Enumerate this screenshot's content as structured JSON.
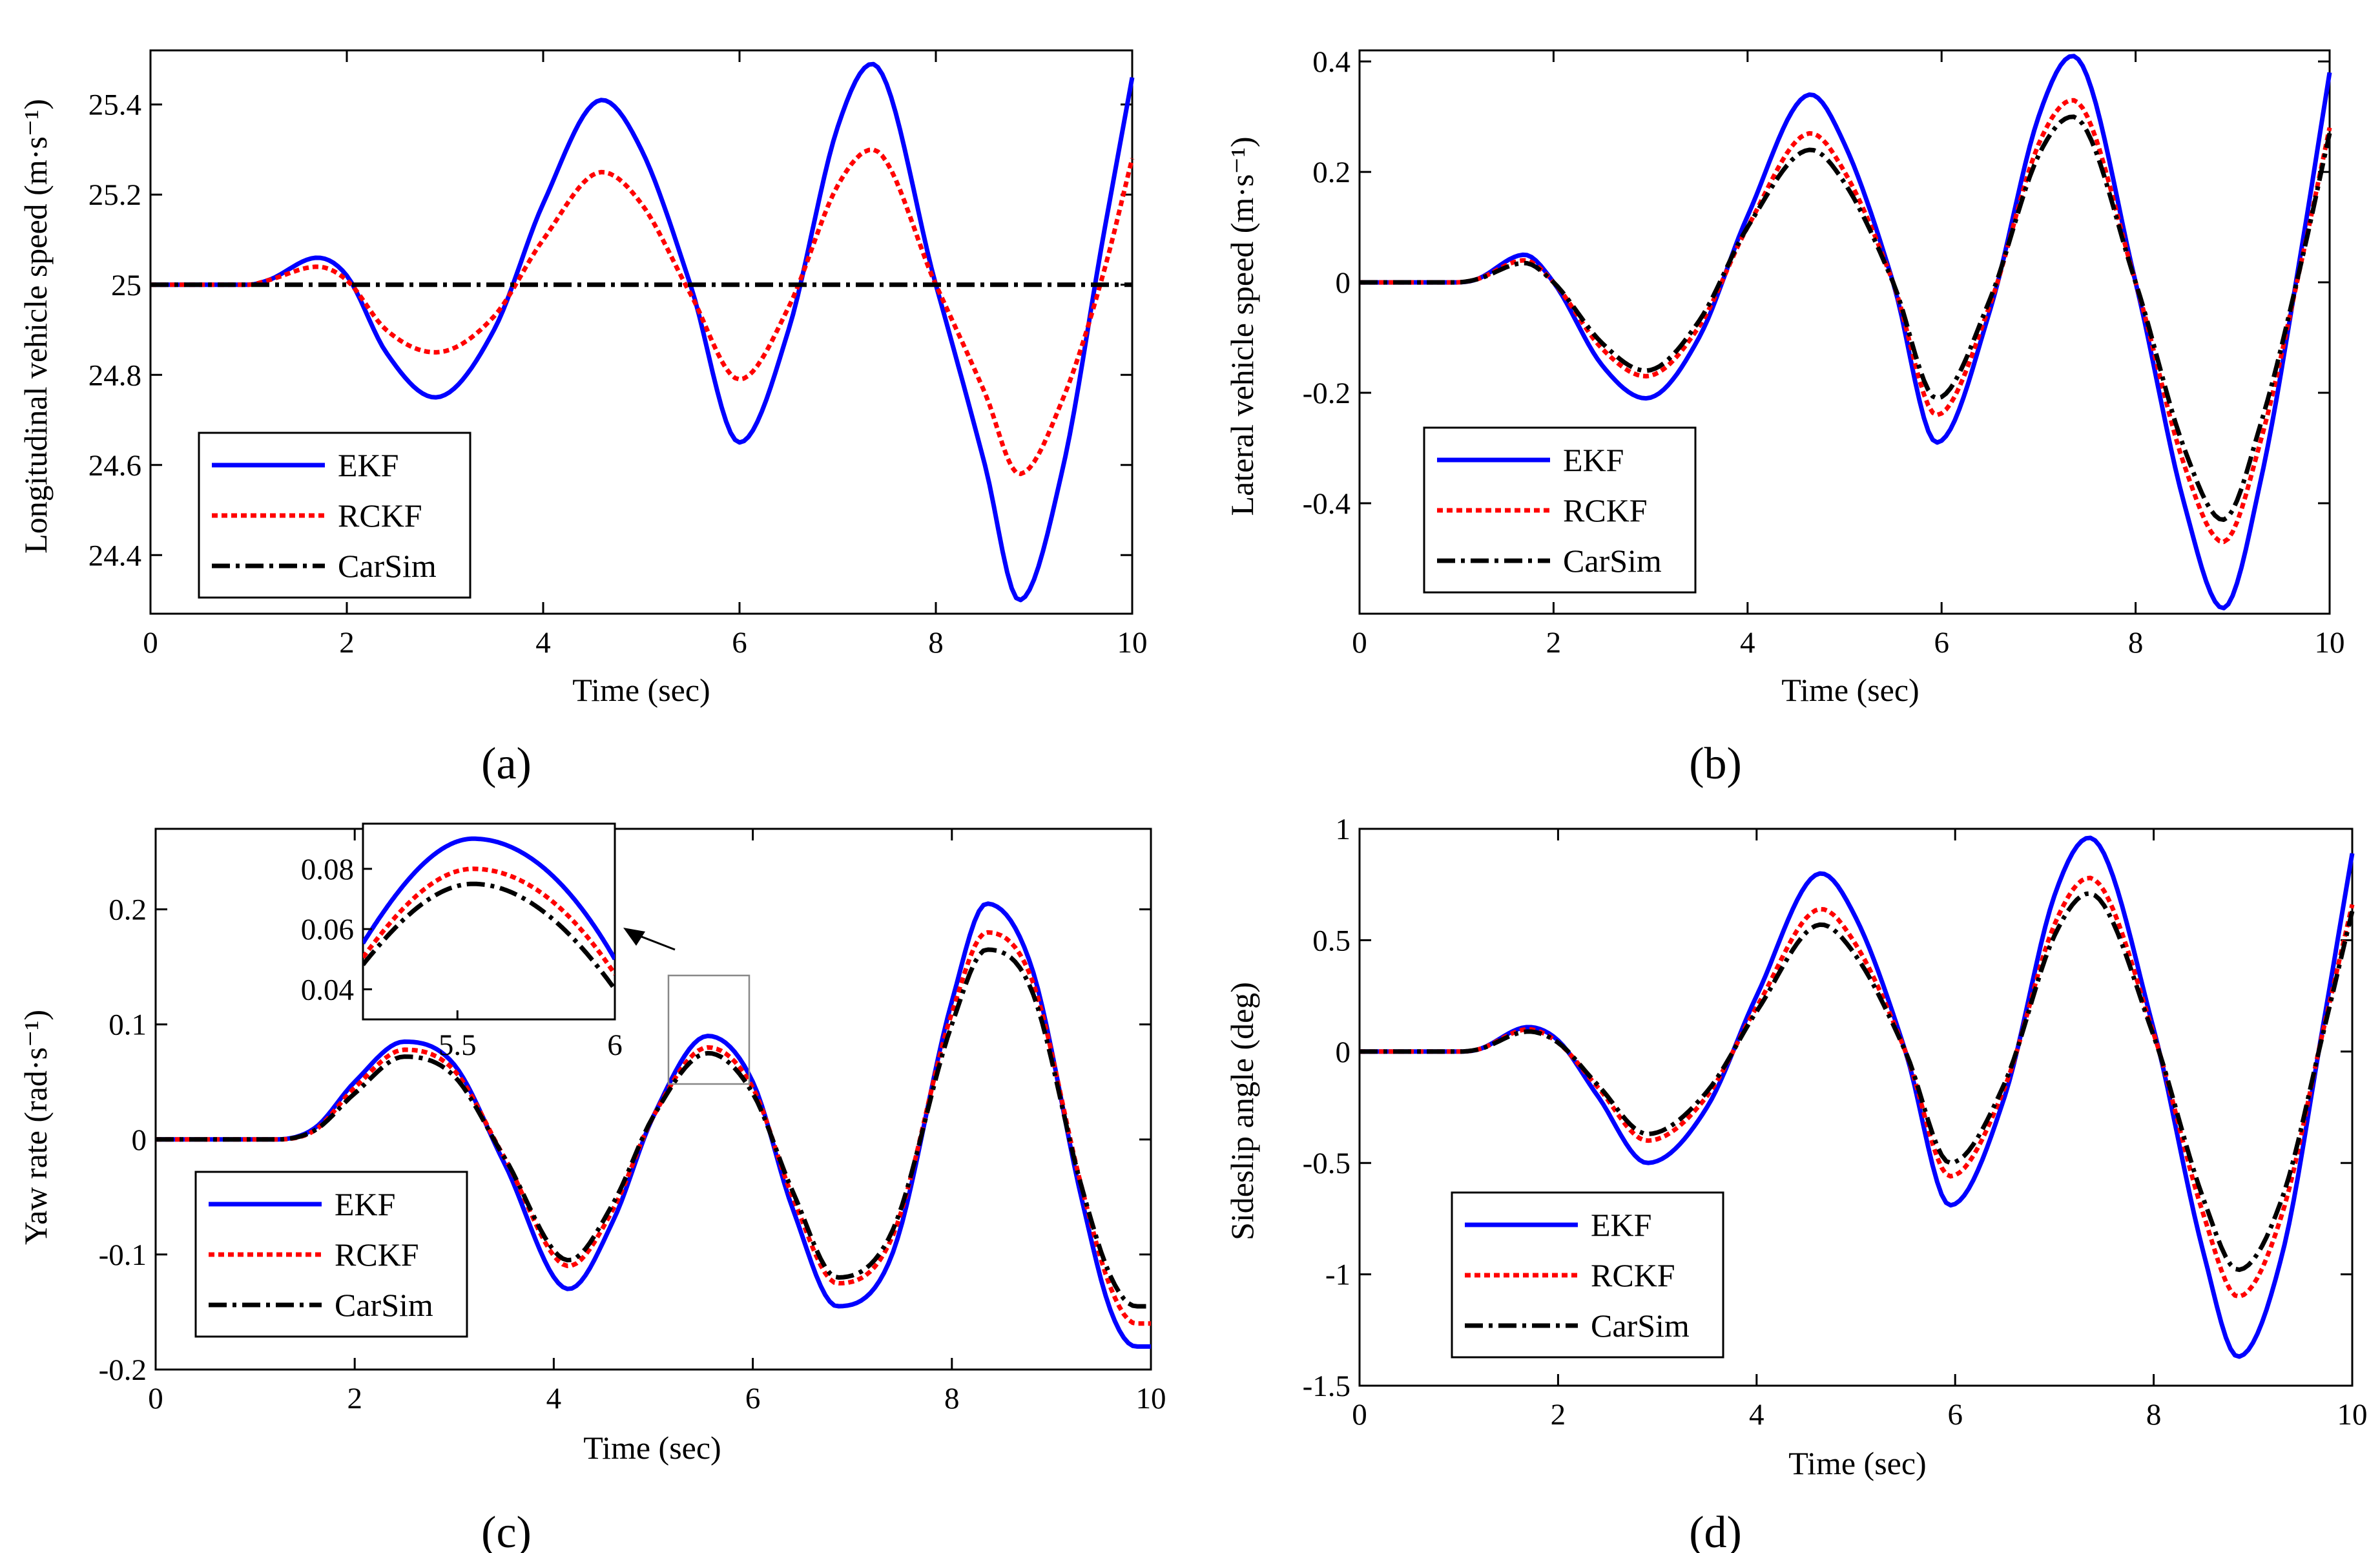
{
  "panels": [
    {
      "caption": "(a)",
      "ylabel": "Longitudinal vehicle speed (m·s⁻¹)",
      "xlabel": "Time (sec)",
      "xticks": [
        "0",
        "2",
        "4",
        "6",
        "8",
        "10"
      ],
      "yticks": [
        "24.4",
        "24.6",
        "24.8",
        "25",
        "25.2",
        "25.4"
      ],
      "legend": [
        "EKF",
        "RCKF",
        "CarSim"
      ]
    },
    {
      "caption": "(b)",
      "ylabel": "Lateral vehicle speed (m·s⁻¹)",
      "xlabel": "Time (sec)",
      "xticks": [
        "0",
        "2",
        "4",
        "6",
        "8",
        "10"
      ],
      "yticks": [
        "-0.4",
        "-0.2",
        "0",
        "0.2",
        "0.4"
      ],
      "legend": [
        "EKF",
        "RCKF",
        "CarSim"
      ]
    },
    {
      "caption": "(c)",
      "ylabel": "Yaw rate (rad·s⁻¹)",
      "xlabel": "Time (sec)",
      "xticks": [
        "0",
        "2",
        "4",
        "6",
        "8",
        "10"
      ],
      "yticks": [
        "-0.2",
        "-0.1",
        "0",
        "0.1",
        "0.2"
      ],
      "legend": [
        "EKF",
        "RCKF",
        "CarSim"
      ],
      "inset": {
        "xticks": [
          "5.5",
          "6"
        ],
        "yticks": [
          "0.04",
          "0.06",
          "0.08"
        ]
      }
    },
    {
      "caption": "(d)",
      "ylabel": "Sideslip angle (deg)",
      "xlabel": "Time (sec)",
      "xticks": [
        "0",
        "2",
        "4",
        "6",
        "8",
        "10"
      ],
      "yticks": [
        "-1.5",
        "-1",
        "-0.5",
        "0",
        "0.5",
        "1"
      ],
      "legend": [
        "EKF",
        "RCKF",
        "CarSim"
      ]
    }
  ],
  "colors": {
    "EKF": "#0000ff",
    "RCKF": "#ff0000",
    "CarSim": "#000000"
  },
  "chart_data": [
    {
      "type": "line",
      "caption": "(a)",
      "xlabel": "Time (sec)",
      "ylabel": "Longitudinal vehicle speed (m·s⁻¹)",
      "xlim": [
        0,
        10
      ],
      "ylim": [
        24.27,
        25.52
      ],
      "x": [
        0,
        1,
        1.2,
        1.7,
        2.0,
        2.4,
        2.9,
        3.5,
        4.0,
        4.6,
        5.0,
        5.5,
        6.0,
        6.5,
        7.0,
        7.35,
        8.0,
        8.5,
        8.85,
        9.3,
        9.7,
        10.0
      ],
      "series": [
        {
          "name": "EKF",
          "values": [
            25.0,
            25.0,
            25.01,
            25.06,
            25.02,
            24.85,
            24.75,
            24.9,
            25.18,
            25.41,
            25.3,
            25.0,
            24.65,
            24.9,
            25.35,
            25.49,
            25.0,
            24.6,
            24.3,
            24.6,
            25.1,
            25.46
          ]
        },
        {
          "name": "RCKF",
          "values": [
            25.0,
            25.0,
            25.01,
            25.04,
            25.01,
            24.9,
            24.85,
            24.93,
            25.1,
            25.25,
            25.18,
            24.98,
            24.79,
            24.95,
            25.22,
            25.3,
            25.0,
            24.76,
            24.58,
            24.75,
            25.02,
            25.28
          ]
        },
        {
          "name": "CarSim",
          "values": [
            25.0,
            25.0,
            25.0,
            25.0,
            25.0,
            25.0,
            25.0,
            25.0,
            25.0,
            25.0,
            25.0,
            25.0,
            25.0,
            25.0,
            25.0,
            25.0,
            25.0,
            25.0,
            25.0,
            25.0,
            25.0,
            25.0
          ]
        }
      ]
    },
    {
      "type": "line",
      "caption": "(b)",
      "xlabel": "Time (sec)",
      "ylabel": "Lateral vehicle speed (m·s⁻¹)",
      "xlim": [
        0,
        10
      ],
      "ylim": [
        -0.6,
        0.42
      ],
      "x": [
        0,
        1,
        1.2,
        1.7,
        2.0,
        2.5,
        2.95,
        3.5,
        4.0,
        4.65,
        5.0,
        5.5,
        5.95,
        6.5,
        7.0,
        7.35,
        8.0,
        8.5,
        8.9,
        9.3,
        9.7,
        10.0
      ],
      "series": [
        {
          "name": "EKF",
          "values": [
            0,
            0,
            0.005,
            0.05,
            0.0,
            -0.15,
            -0.21,
            -0.1,
            0.12,
            0.34,
            0.25,
            0.0,
            -0.29,
            -0.05,
            0.3,
            0.41,
            0.0,
            -0.4,
            -0.59,
            -0.35,
            0.05,
            0.38
          ]
        },
        {
          "name": "RCKF",
          "values": [
            0,
            0,
            0.005,
            0.04,
            0.0,
            -0.12,
            -0.17,
            -0.08,
            0.1,
            0.27,
            0.2,
            0.0,
            -0.24,
            -0.04,
            0.25,
            0.33,
            0.0,
            -0.33,
            -0.47,
            -0.28,
            0.03,
            0.28
          ]
        },
        {
          "name": "CarSim",
          "values": [
            0,
            0,
            0.005,
            0.035,
            0.0,
            -0.11,
            -0.16,
            -0.07,
            0.1,
            0.24,
            0.18,
            0.0,
            -0.21,
            -0.03,
            0.23,
            0.3,
            0.0,
            -0.3,
            -0.43,
            -0.25,
            0.03,
            0.27
          ]
        }
      ]
    },
    {
      "type": "line",
      "caption": "(c)",
      "xlabel": "Time (sec)",
      "ylabel": "Yaw rate (rad·s⁻¹)",
      "xlim": [
        0,
        10
      ],
      "ylim": [
        -0.2,
        0.27
      ],
      "x": [
        0,
        1.2,
        1.6,
        2.0,
        2.5,
        3.0,
        3.5,
        4.15,
        4.6,
        5.0,
        5.55,
        6.0,
        6.4,
        6.85,
        7.4,
        8.0,
        8.35,
        8.8,
        9.3,
        9.6,
        9.85,
        10.0
      ],
      "series": [
        {
          "name": "EKF",
          "values": [
            0,
            0,
            0.01,
            0.05,
            0.085,
            0.065,
            -0.02,
            -0.13,
            -0.07,
            0.02,
            0.09,
            0.05,
            -0.06,
            -0.145,
            -0.1,
            0.12,
            0.205,
            0.15,
            -0.05,
            -0.15,
            -0.18,
            -0.18
          ]
        },
        {
          "name": "RCKF",
          "values": [
            0,
            0,
            0.008,
            0.045,
            0.078,
            0.06,
            -0.015,
            -0.11,
            -0.06,
            0.02,
            0.08,
            0.045,
            -0.05,
            -0.125,
            -0.085,
            0.11,
            0.18,
            0.14,
            -0.04,
            -0.13,
            -0.16,
            -0.16
          ]
        },
        {
          "name": "CarSim",
          "values": [
            0,
            0,
            0.008,
            0.04,
            0.072,
            0.055,
            -0.015,
            -0.105,
            -0.055,
            0.02,
            0.075,
            0.04,
            -0.045,
            -0.12,
            -0.08,
            0.1,
            0.165,
            0.13,
            -0.04,
            -0.12,
            -0.145,
            -0.145
          ]
        }
      ],
      "inset": {
        "xlim": [
          5.2,
          6.0
        ],
        "ylim": [
          0.03,
          0.095
        ]
      }
    },
    {
      "type": "line",
      "caption": "(d)",
      "xlabel": "Time (sec)",
      "ylabel": "Sideslip angle (deg)",
      "xlim": [
        0,
        10
      ],
      "ylim": [
        -1.5,
        1.0
      ],
      "x": [
        0,
        1,
        1.2,
        1.7,
        2.0,
        2.4,
        2.9,
        3.5,
        4.0,
        4.65,
        5.0,
        5.5,
        5.95,
        6.5,
        7.0,
        7.35,
        8.0,
        8.5,
        8.85,
        9.3,
        9.7,
        10.0
      ],
      "series": [
        {
          "name": "EKF",
          "values": [
            0,
            0,
            0.01,
            0.11,
            0.05,
            -0.2,
            -0.5,
            -0.25,
            0.25,
            0.8,
            0.6,
            0.0,
            -0.69,
            -0.2,
            0.7,
            0.96,
            0.1,
            -0.9,
            -1.37,
            -0.9,
            0.1,
            0.89
          ]
        },
        {
          "name": "RCKF",
          "values": [
            0,
            0,
            0.01,
            0.1,
            0.04,
            -0.16,
            -0.4,
            -0.2,
            0.2,
            0.64,
            0.48,
            0.0,
            -0.56,
            -0.16,
            0.57,
            0.78,
            0.08,
            -0.73,
            -1.1,
            -0.72,
            0.08,
            0.66
          ]
        },
        {
          "name": "CarSim",
          "values": [
            0,
            0,
            0.01,
            0.09,
            0.04,
            -0.15,
            -0.37,
            -0.18,
            0.18,
            0.57,
            0.43,
            0.0,
            -0.5,
            -0.14,
            0.52,
            0.71,
            0.07,
            -0.66,
            -0.98,
            -0.65,
            0.07,
            0.63
          ]
        }
      ]
    }
  ]
}
